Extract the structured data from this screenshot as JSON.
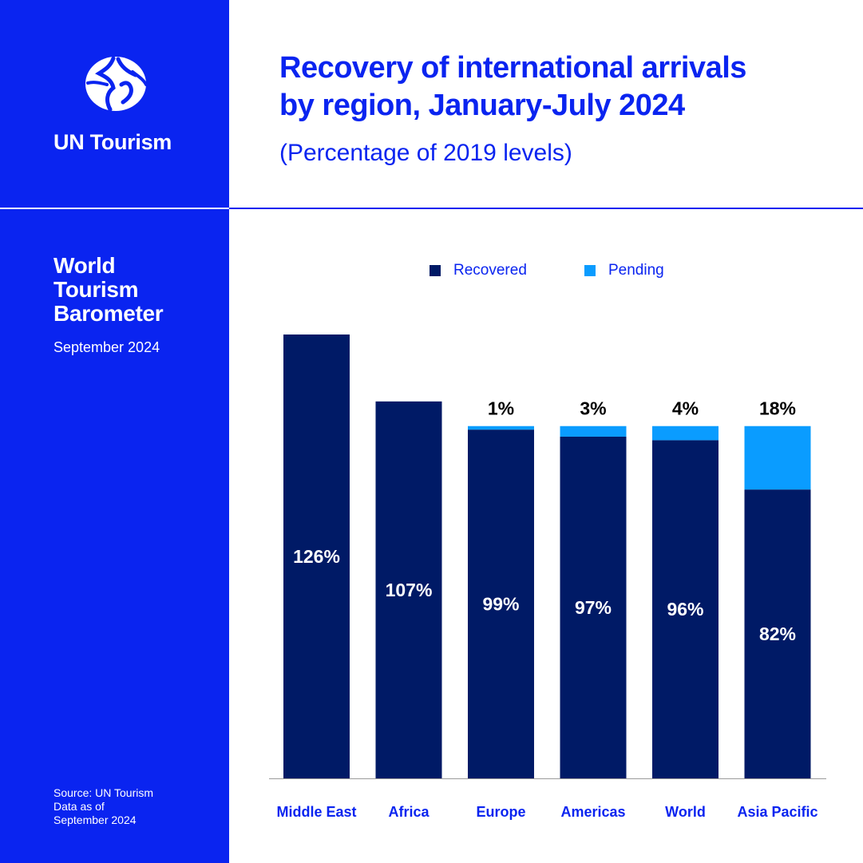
{
  "brand": {
    "name": "UN Tourism"
  },
  "report": {
    "title_lines": [
      "World",
      "Tourism",
      "Barometer"
    ],
    "date": "September 2024"
  },
  "source": {
    "lines": [
      "Source: UN Tourism",
      "Data as of",
      "September 2024"
    ]
  },
  "header": {
    "title_lines": [
      "Recovery of international arrivals",
      "by region, January-July 2024"
    ],
    "subtitle": "(Percentage of 2019 levels)"
  },
  "colors": {
    "brand_blue": "#0a24f0",
    "recovered": "#001a66",
    "pending": "#0a9cff",
    "white": "#ffffff"
  },
  "chart_data": {
    "type": "bar",
    "stacked": true,
    "categories": [
      "Middle East",
      "Africa",
      "Europe",
      "Americas",
      "World",
      "Asia Pacific"
    ],
    "series": [
      {
        "name": "Recovered",
        "values": [
          126,
          107,
          99,
          97,
          96,
          82
        ],
        "labels": [
          "126%",
          "107%",
          "99%",
          "97%",
          "96%",
          "82%"
        ]
      },
      {
        "name": "Pending",
        "values": [
          0,
          0,
          1,
          3,
          4,
          18
        ],
        "labels": [
          "",
          "",
          "1%",
          "3%",
          "4%",
          "18%"
        ]
      }
    ],
    "legend": "top",
    "grid": false,
    "ylim": [
      0,
      126
    ]
  }
}
